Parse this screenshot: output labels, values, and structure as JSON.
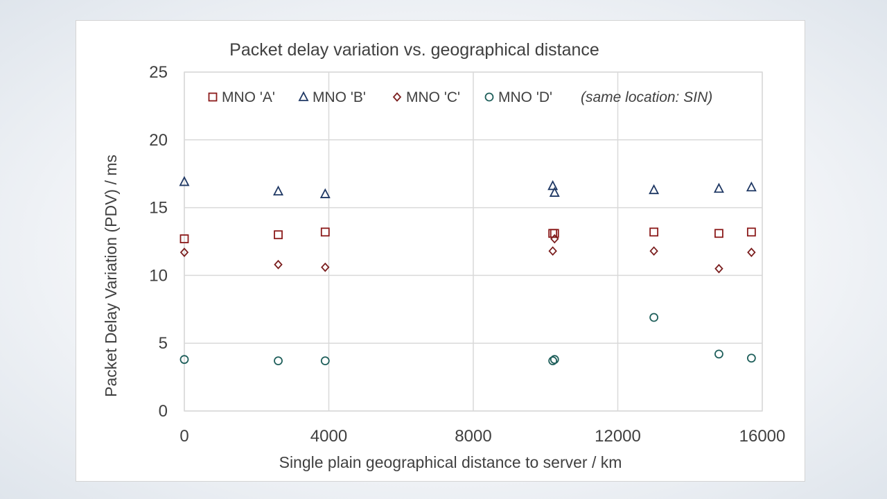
{
  "chart_data": {
    "type": "scatter",
    "title": "Packet delay variation vs. geographical distance",
    "xlabel": "Single plain geographical distance to server / km",
    "ylabel": "Packet Delay Variation (PDV) / ms",
    "xlim": [
      0,
      16000
    ],
    "ylim": [
      0,
      25
    ],
    "x_ticks": [
      0,
      4000,
      8000,
      12000,
      16000
    ],
    "y_ticks": [
      0,
      5,
      10,
      15,
      20,
      25
    ],
    "grid": true,
    "legend_position": "top",
    "annotation": "(same location: SIN)",
    "series": [
      {
        "name": "MNO 'A'",
        "marker": "square",
        "color": "#8B1A1A",
        "points": [
          [
            0,
            12.7
          ],
          [
            2600,
            13.0
          ],
          [
            3900,
            13.2
          ],
          [
            10200,
            13.1
          ],
          [
            10250,
            13.1
          ],
          [
            13000,
            13.2
          ],
          [
            14800,
            13.1
          ],
          [
            15700,
            13.2
          ]
        ]
      },
      {
        "name": "MNO 'B'",
        "marker": "triangle",
        "color": "#1F3864",
        "points": [
          [
            0,
            16.9
          ],
          [
            2600,
            16.2
          ],
          [
            3900,
            16.0
          ],
          [
            10200,
            16.6
          ],
          [
            10250,
            16.1
          ],
          [
            13000,
            16.3
          ],
          [
            14800,
            16.4
          ],
          [
            15700,
            16.5
          ]
        ]
      },
      {
        "name": "MNO 'C'",
        "marker": "diamond",
        "color": "#7B1F1F",
        "points": [
          [
            0,
            11.7
          ],
          [
            2600,
            10.8
          ],
          [
            3900,
            10.6
          ],
          [
            10200,
            11.8
          ],
          [
            10250,
            12.7
          ],
          [
            13000,
            11.8
          ],
          [
            14800,
            10.5
          ],
          [
            15700,
            11.7
          ]
        ]
      },
      {
        "name": "MNO 'D'",
        "marker": "circle",
        "color": "#1F5F5B",
        "points": [
          [
            0,
            3.8
          ],
          [
            2600,
            3.7
          ],
          [
            3900,
            3.7
          ],
          [
            10200,
            3.7
          ],
          [
            10250,
            3.8
          ],
          [
            13000,
            6.9
          ],
          [
            14800,
            4.2
          ],
          [
            15700,
            3.9
          ]
        ]
      }
    ]
  }
}
